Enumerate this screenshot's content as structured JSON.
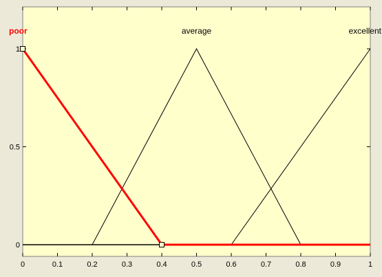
{
  "chart_data": {
    "type": "line",
    "xlim": [
      0,
      1
    ],
    "ylim": [
      0,
      1
    ],
    "x_ticks": [
      "0",
      "0.1",
      "0.2",
      "0.3",
      "0.4",
      "0.5",
      "0.6",
      "0.7",
      "0.8",
      "0.9",
      "1"
    ],
    "y_ticks": [
      "0",
      "0.5",
      "1"
    ],
    "grid": false,
    "background_color": "#ffffcc",
    "frame_color": "#ece9d8",
    "series": [
      {
        "name": "poor",
        "color": "#ff0000",
        "selected": true,
        "points": [
          [
            0,
            1
          ],
          [
            0.4,
            0
          ],
          [
            1,
            0
          ]
        ]
      },
      {
        "name": "average",
        "color": "#000000",
        "selected": false,
        "points": [
          [
            0.2,
            0
          ],
          [
            0.5,
            1
          ],
          [
            0.8,
            0
          ]
        ]
      },
      {
        "name": "excellent",
        "color": "#000000",
        "selected": false,
        "points": [
          [
            0.6,
            0
          ],
          [
            1,
            1
          ]
        ]
      }
    ],
    "handles": [
      [
        0,
        1
      ],
      [
        0.4,
        0
      ]
    ]
  }
}
